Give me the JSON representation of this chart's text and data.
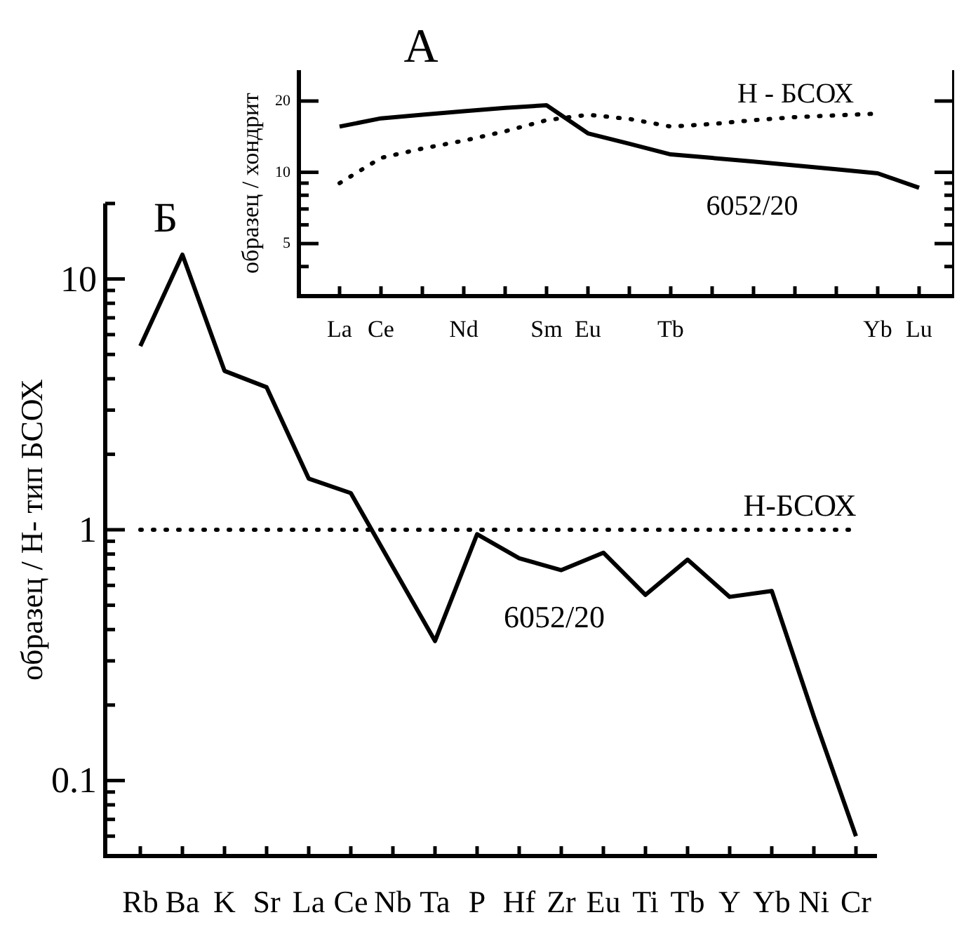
{
  "chart_data": [
    {
      "type": "line",
      "title": "А",
      "ylabel": "образец / хондрит",
      "log": true,
      "categories": [
        "La",
        "Ce",
        null,
        "Nd",
        null,
        "Sm",
        "Eu",
        null,
        "Tb",
        null,
        null,
        null,
        null,
        "Yb",
        "Lu"
      ],
      "series": [
        {
          "name": "6052/20",
          "color": "#000000",
          "line_style": "solid",
          "values": [
            15.6,
            16.9,
            17.5,
            18.1,
            18.7,
            19.2,
            14.6,
            13.2,
            11.9,
            11.5,
            11.1,
            10.7,
            10.3,
            9.9,
            8.6
          ]
        },
        {
          "name": "Н - БСОХ",
          "color": "#000000",
          "line_style": "dotted",
          "values": [
            9.0,
            11.5,
            12.6,
            13.6,
            14.9,
            16.6,
            17.5,
            16.8,
            15.6,
            16.0,
            16.6,
            17.1,
            17.4,
            17.7,
            null
          ]
        }
      ],
      "ylim": [
        3,
        27
      ],
      "yticks": [
        {
          "value": 4,
          "label": null
        },
        5,
        {
          "value": 6,
          "label": null
        },
        {
          "value": 7,
          "label": null
        },
        {
          "value": 8,
          "label": null
        },
        {
          "value": 9,
          "label": null
        },
        10,
        20
      ],
      "grid": false,
      "marker": "none"
    },
    {
      "type": "line",
      "title": "Б",
      "ylabel": "образец / Н- тип БСОХ",
      "log": true,
      "categories": [
        "Rb",
        "Ba",
        "K",
        "Sr",
        "La",
        "Ce",
        "Nb",
        "Ta",
        "P",
        "Hf",
        "Zr",
        "Eu",
        "Ti",
        "Tb",
        "Y",
        "Yb",
        "Ni",
        "Cr"
      ],
      "series": [
        {
          "name": "6052/20",
          "color": "#000000",
          "line_style": "solid",
          "values": [
            5.4,
            12.5,
            4.3,
            3.7,
            1.6,
            1.4,
            0.71,
            0.36,
            0.96,
            0.77,
            0.69,
            0.81,
            0.55,
            0.76,
            0.54,
            0.57,
            0.18,
            0.06
          ]
        }
      ],
      "ref_lines": [
        {
          "axis": "y",
          "value": 1,
          "label": "Н-БСОХ",
          "color": "#000000",
          "line_style": "dotted"
        }
      ],
      "ylim": [
        0.05,
        20
      ],
      "yticks": [
        {
          "value": 0.05,
          "label": null
        },
        {
          "value": 0.06,
          "label": null
        },
        {
          "value": 0.07,
          "label": null
        },
        {
          "value": 0.08,
          "label": null
        },
        {
          "value": 0.09,
          "label": null
        },
        0.1,
        {
          "value": 0.2,
          "label": null
        },
        {
          "value": 0.3,
          "label": null
        },
        {
          "value": 0.4,
          "label": null
        },
        {
          "value": 0.5,
          "label": null
        },
        {
          "value": 0.6,
          "label": null
        },
        {
          "value": 0.7,
          "label": null
        },
        {
          "value": 0.8,
          "label": null
        },
        {
          "value": 0.9,
          "label": null
        },
        1,
        {
          "value": 2,
          "label": null
        },
        {
          "value": 3,
          "label": null
        },
        {
          "value": 4,
          "label": null
        },
        {
          "value": 5,
          "label": null
        },
        {
          "value": 6,
          "label": null
        },
        {
          "value": 7,
          "label": null
        },
        {
          "value": 8,
          "label": null
        },
        {
          "value": 9,
          "label": null
        },
        10,
        {
          "value": 20,
          "label": null
        }
      ],
      "grid": false,
      "marker": "none"
    }
  ]
}
